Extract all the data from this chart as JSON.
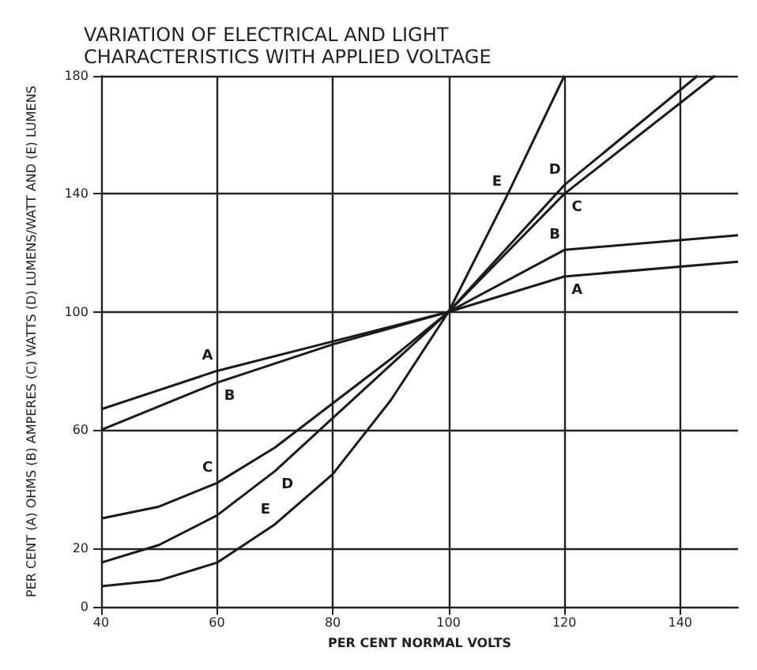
{
  "chart_data": {
    "type": "line",
    "title": "VARIATION OF ELECTRICAL AND LIGHT\nCHARACTERISTICS WITH APPLIED VOLTAGE",
    "xlabel": "PER CENT NORMAL VOLTS",
    "ylabel": "PER CENT (A) OHMS (B) AMPERES (C) WATTS (D) LUMENS/WATT AND (E) LUMENS",
    "xlim": [
      40,
      150
    ],
    "xticks": [
      40,
      60,
      80,
      100,
      120,
      140
    ],
    "ylim": [
      0,
      180
    ],
    "yticks": [
      0,
      20,
      60,
      100,
      140,
      180
    ],
    "grid": true,
    "marker": "none",
    "line_style": "solid",
    "series": [
      {
        "color": "#1a1a1a",
        "x": [
          40,
          60,
          80,
          100,
          120,
          150
        ],
        "values": [
          67,
          80,
          90,
          100,
          112,
          117
        ]
      },
      {
        "color": "#1a1a1a",
        "x": [
          40,
          60,
          80,
          100,
          120,
          150
        ],
        "values": [
          60,
          76,
          89,
          100,
          121,
          126
        ]
      },
      {
        "color": "#1a1a1a",
        "x": [
          40,
          50,
          60,
          70,
          80,
          90,
          100,
          120,
          146
        ],
        "values": [
          30,
          34,
          42,
          54,
          69,
          84,
          100,
          140,
          180
        ]
      },
      {
        "color": "#1a1a1a",
        "x": [
          40,
          50,
          60,
          70,
          80,
          90,
          100,
          120,
          143
        ],
        "values": [
          15,
          21,
          31,
          46,
          64,
          82,
          100,
          143,
          180
        ]
      },
      {
        "color": "#1a1a1a",
        "x": [
          40,
          50,
          60,
          70,
          80,
          90,
          100,
          110,
          120
        ],
        "values": [
          7,
          9,
          15,
          28,
          45,
          70,
          100,
          139,
          180
        ]
      }
    ],
    "annotations": [
      {
        "text": "A",
        "x": 60,
        "y": 80
      },
      {
        "text": "A",
        "x": 120,
        "y": 112
      },
      {
        "text": "B",
        "x": 60,
        "y": 76
      },
      {
        "text": "B",
        "x": 120,
        "y": 121
      },
      {
        "text": "C",
        "x": 60,
        "y": 42
      },
      {
        "text": "C",
        "x": 120,
        "y": 140
      },
      {
        "text": "D",
        "x": 70,
        "y": 46
      },
      {
        "text": "D",
        "x": 120,
        "y": 143
      },
      {
        "text": "E",
        "x": 70,
        "y": 28
      },
      {
        "text": "E",
        "x": 110,
        "y": 139
      }
    ]
  }
}
